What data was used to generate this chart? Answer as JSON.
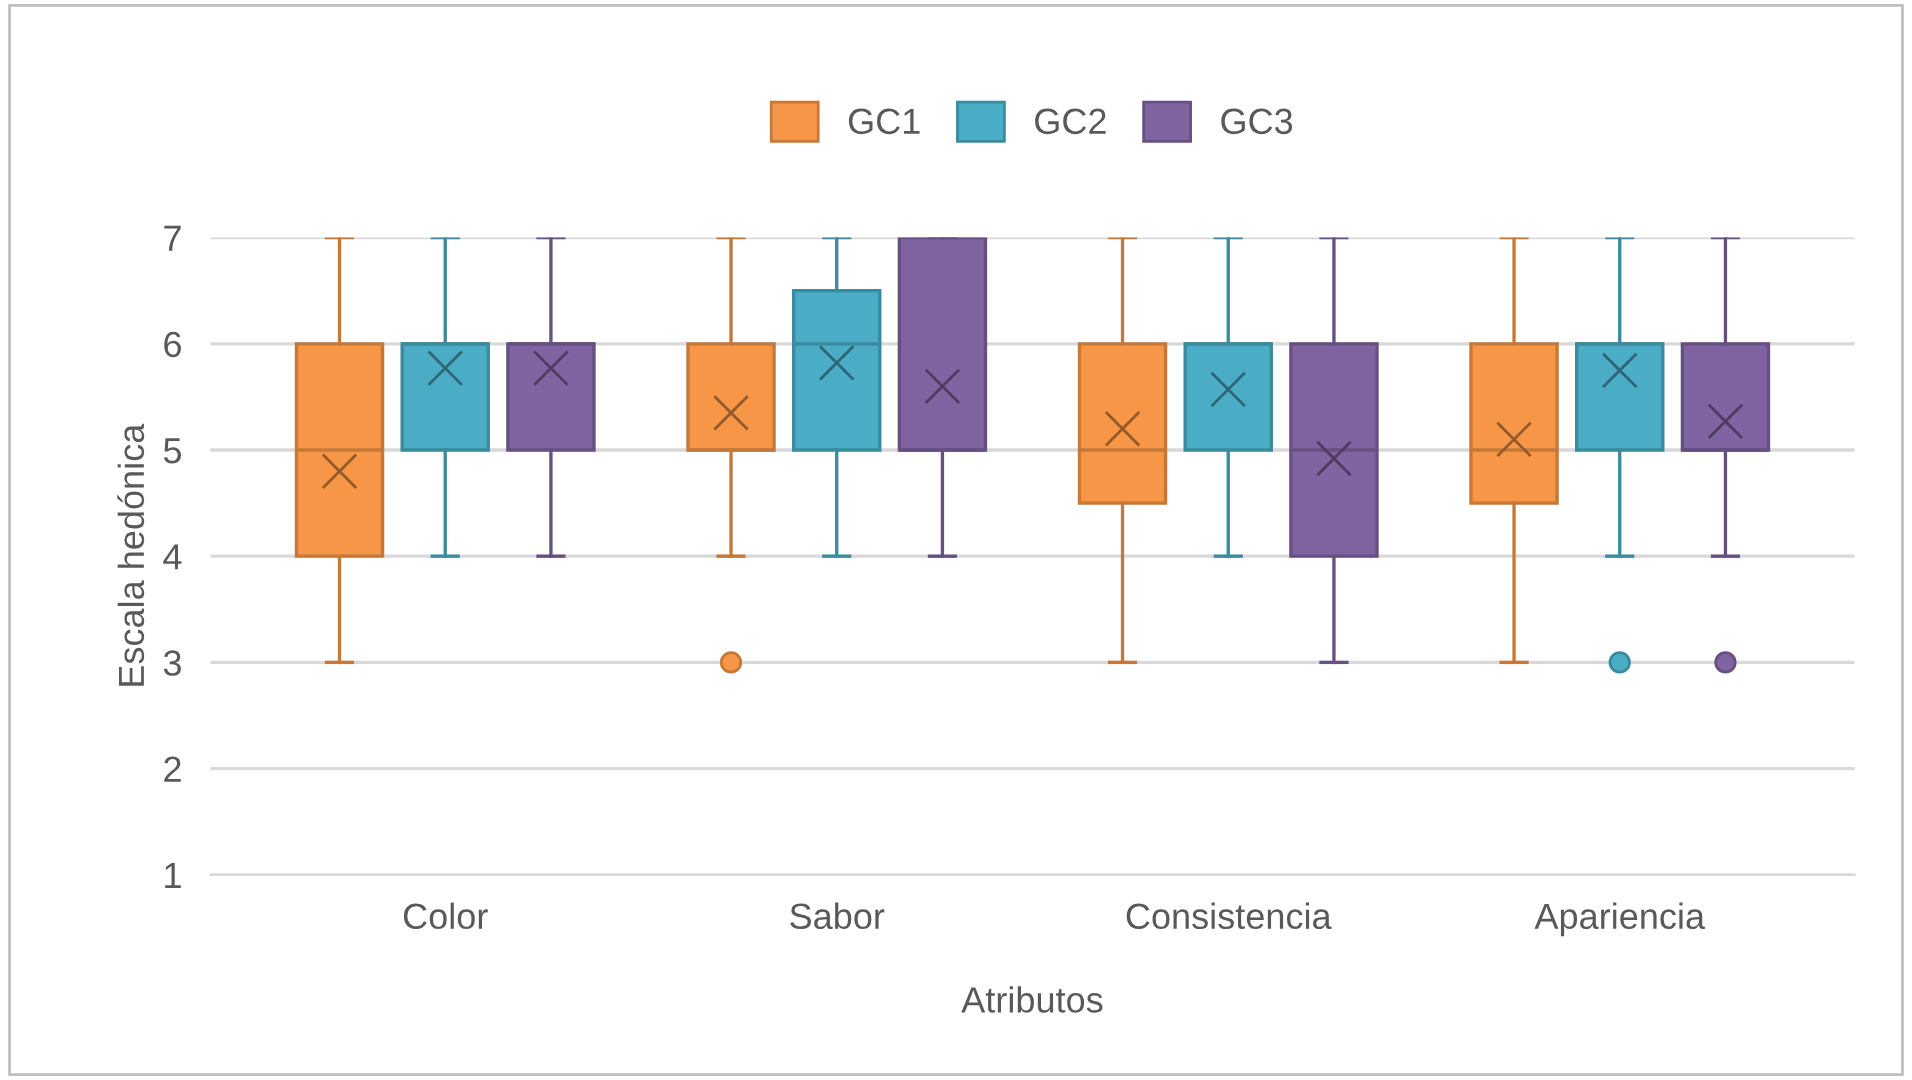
{
  "chart_data": {
    "type": "box",
    "xlabel": "Atributos",
    "ylabel": "Escala hedónica",
    "categories": [
      "Color",
      "Sabor",
      "Consistencia",
      "Apariencia"
    ],
    "ylim": [
      1,
      7
    ],
    "yticks": [
      1,
      2,
      3,
      4,
      5,
      6,
      7
    ],
    "grid": "y",
    "legend": "top",
    "series": [
      {
        "name": "GC1",
        "color": "#f79646",
        "boxes": [
          {
            "low": 3,
            "q1": 4,
            "median": 5,
            "q3": 6,
            "high": 7,
            "mean": 4.8
          },
          {
            "low": 4,
            "q1": 5,
            "median": 5,
            "q3": 6,
            "high": 7,
            "mean": 5.35,
            "outliers": [
              3
            ]
          },
          {
            "low": 3,
            "q1": 4.5,
            "median": 5,
            "q3": 6,
            "high": 7,
            "mean": 5.2
          },
          {
            "low": 3,
            "q1": 4.5,
            "median": 5,
            "q3": 6,
            "high": 7,
            "mean": 5.1
          }
        ]
      },
      {
        "name": "GC2",
        "color": "#4bacc6",
        "boxes": [
          {
            "low": 4,
            "q1": 5,
            "median": 6,
            "q3": 6,
            "high": 7,
            "mean": 5.77
          },
          {
            "low": 4,
            "q1": 5,
            "median": 6,
            "q3": 6.5,
            "high": 7,
            "mean": 5.82
          },
          {
            "low": 4,
            "q1": 5,
            "median": 6,
            "q3": 6,
            "high": 7,
            "mean": 5.57
          },
          {
            "low": 4,
            "q1": 5,
            "median": 6,
            "q3": 6,
            "high": 7,
            "mean": 5.75,
            "outliers": [
              3
            ]
          }
        ]
      },
      {
        "name": "GC3",
        "color": "#8064a2",
        "boxes": [
          {
            "low": 4,
            "q1": 5,
            "median": 6,
            "q3": 6,
            "high": 7,
            "mean": 5.77
          },
          {
            "low": 4,
            "q1": 5,
            "median": 5,
            "q3": 7,
            "high": 7,
            "mean": 5.6
          },
          {
            "low": 3,
            "q1": 4,
            "median": 5,
            "q3": 6,
            "high": 7,
            "mean": 4.92
          },
          {
            "low": 4,
            "q1": 5,
            "median": 5,
            "q3": 6,
            "high": 7,
            "mean": 5.27,
            "outliers": [
              3
            ]
          }
        ]
      }
    ]
  }
}
